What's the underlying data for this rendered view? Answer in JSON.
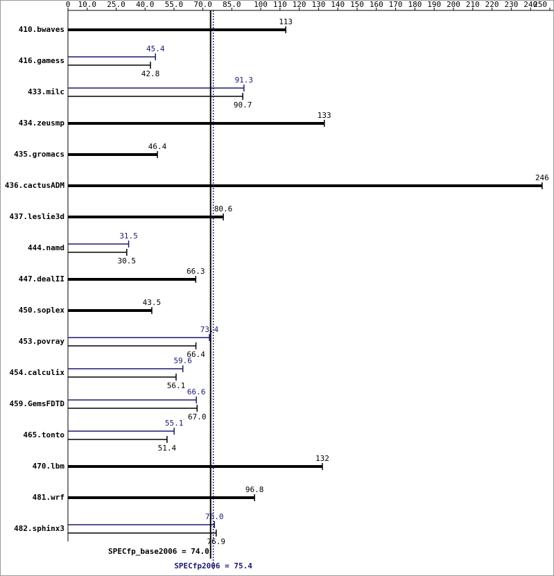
{
  "chart_data": {
    "type": "bar",
    "orientation": "horizontal",
    "categories": [
      "410.bwaves",
      "416.gamess",
      "433.milc",
      "434.zeusmp",
      "435.gromacs",
      "436.cactusADM",
      "437.leslie3d",
      "444.namd",
      "447.dealII",
      "450.soplex",
      "453.povray",
      "454.calculix",
      "459.GemsFDTD",
      "465.tonto",
      "470.lbm",
      "481.wrf",
      "482.sphinx3"
    ],
    "series": [
      {
        "color": "#000000",
        "values": [
          113,
          42.8,
          90.7,
          133,
          46.4,
          246,
          80.6,
          30.5,
          66.3,
          43.5,
          66.4,
          56.1,
          67.0,
          51.4,
          132,
          96.8,
          76.9
        ],
        "value_labels": [
          "113",
          "42.8",
          "90.7",
          "133",
          "46.4",
          "246",
          "80.6",
          "30.5",
          "66.3",
          "43.5",
          "66.4",
          "56.1",
          "67.0",
          "51.4",
          "132",
          "96.8",
          "76.9"
        ]
      },
      {
        "color": "#191970",
        "values": [
          null,
          45.4,
          91.3,
          null,
          null,
          null,
          null,
          31.5,
          null,
          null,
          73.4,
          59.6,
          66.6,
          55.1,
          null,
          null,
          76.0
        ],
        "value_labels": [
          null,
          "45.4",
          "91.3",
          null,
          null,
          null,
          null,
          "31.5",
          null,
          null,
          "73.4",
          "59.6",
          "66.6",
          "55.1",
          null,
          null,
          "76.0"
        ]
      }
    ],
    "xlim": [
      0,
      250
    ],
    "xticks": [
      0,
      {
        "value": 10,
        "label": "10.0"
      },
      {
        "value": 25,
        "label": "25.0"
      },
      {
        "value": 40,
        "label": "40.0"
      },
      {
        "value": 55,
        "label": "55.0"
      },
      {
        "value": 70,
        "label": "70.0"
      },
      {
        "value": 85,
        "label": "85.0"
      },
      100,
      110,
      120,
      130,
      140,
      150,
      160,
      170,
      180,
      190,
      200,
      210,
      220,
      230,
      240,
      250
    ],
    "reference_lines": [
      {
        "label": "SPECfp_base2006 = 74.0",
        "value": 74.0,
        "color": "#000000"
      },
      {
        "label": "SPECfp2006 = 75.4",
        "value": 75.4,
        "color": "#191970"
      }
    ]
  }
}
